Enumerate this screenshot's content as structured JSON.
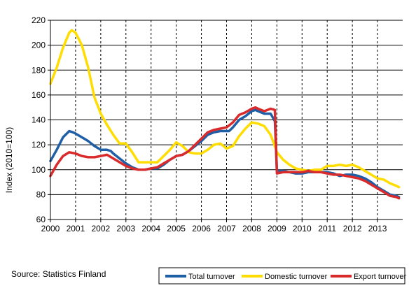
{
  "chart_data": {
    "type": "line",
    "ylabel": "Index (2010=100)",
    "source": "Source: Statistics Finland",
    "xlim": [
      2000,
      2014
    ],
    "ylim": [
      60,
      220
    ],
    "x_ticks": [
      2000,
      2001,
      2002,
      2003,
      2004,
      2005,
      2006,
      2007,
      2008,
      2009,
      2010,
      2011,
      2012,
      2013
    ],
    "y_ticks": [
      60,
      80,
      100,
      120,
      140,
      160,
      180,
      200,
      220
    ],
    "grid": "vertical dashed at years, horizontal solid at y ticks",
    "legend_placement": "bottom-right",
    "series": [
      {
        "name": "Total turnover",
        "color": "#1f5fa6",
        "points": [
          [
            2000.0,
            107
          ],
          [
            2000.25,
            116
          ],
          [
            2000.5,
            126
          ],
          [
            2000.75,
            131
          ],
          [
            2000.9,
            130
          ],
          [
            2001.0,
            129
          ],
          [
            2001.25,
            126
          ],
          [
            2001.5,
            123
          ],
          [
            2001.75,
            119
          ],
          [
            2002.0,
            116
          ],
          [
            2002.25,
            116
          ],
          [
            2002.4,
            115
          ],
          [
            2002.5,
            113
          ],
          [
            2002.75,
            109
          ],
          [
            2003.0,
            105
          ],
          [
            2003.25,
            102
          ],
          [
            2003.5,
            100
          ],
          [
            2003.75,
            100
          ],
          [
            2004.0,
            101
          ],
          [
            2004.25,
            101
          ],
          [
            2004.5,
            104
          ],
          [
            2004.75,
            108
          ],
          [
            2005.0,
            111
          ],
          [
            2005.25,
            112
          ],
          [
            2005.5,
            115
          ],
          [
            2005.75,
            119
          ],
          [
            2006.0,
            123
          ],
          [
            2006.25,
            128
          ],
          [
            2006.5,
            130
          ],
          [
            2006.75,
            131
          ],
          [
            2007.0,
            131
          ],
          [
            2007.1,
            131
          ],
          [
            2007.25,
            134
          ],
          [
            2007.5,
            140
          ],
          [
            2007.75,
            143
          ],
          [
            2008.0,
            147
          ],
          [
            2008.15,
            148
          ],
          [
            2008.25,
            147
          ],
          [
            2008.5,
            145
          ],
          [
            2008.75,
            145
          ],
          [
            2008.92,
            139
          ],
          [
            2009.0,
            99
          ],
          [
            2009.25,
            99
          ],
          [
            2009.5,
            98
          ],
          [
            2009.75,
            97
          ],
          [
            2010.0,
            97
          ],
          [
            2010.25,
            98
          ],
          [
            2010.5,
            98
          ],
          [
            2010.75,
            98
          ],
          [
            2011.0,
            98
          ],
          [
            2011.25,
            97
          ],
          [
            2011.5,
            95
          ],
          [
            2011.75,
            96
          ],
          [
            2012.0,
            96
          ],
          [
            2012.25,
            95
          ],
          [
            2012.5,
            93
          ],
          [
            2012.75,
            90
          ],
          [
            2013.0,
            86
          ],
          [
            2013.25,
            83
          ],
          [
            2013.5,
            80
          ],
          [
            2013.75,
            79
          ],
          [
            2013.85,
            78
          ]
        ]
      },
      {
        "name": "Domestic turnover",
        "color": "#ffdd00",
        "points": [
          [
            2000.0,
            169
          ],
          [
            2000.25,
            182
          ],
          [
            2000.5,
            198
          ],
          [
            2000.75,
            210
          ],
          [
            2000.85,
            212
          ],
          [
            2001.0,
            210
          ],
          [
            2001.25,
            200
          ],
          [
            2001.5,
            182
          ],
          [
            2001.75,
            158
          ],
          [
            2002.0,
            145
          ],
          [
            2002.25,
            136
          ],
          [
            2002.5,
            128
          ],
          [
            2002.75,
            121
          ],
          [
            2003.0,
            121
          ],
          [
            2003.25,
            114
          ],
          [
            2003.5,
            106
          ],
          [
            2003.75,
            106
          ],
          [
            2004.0,
            106
          ],
          [
            2004.25,
            106
          ],
          [
            2004.5,
            111
          ],
          [
            2004.75,
            116
          ],
          [
            2005.0,
            122
          ],
          [
            2005.25,
            119
          ],
          [
            2005.5,
            114
          ],
          [
            2005.75,
            113
          ],
          [
            2006.0,
            113
          ],
          [
            2006.25,
            116
          ],
          [
            2006.5,
            120
          ],
          [
            2006.75,
            121
          ],
          [
            2007.0,
            117
          ],
          [
            2007.25,
            119
          ],
          [
            2007.5,
            127
          ],
          [
            2007.75,
            133
          ],
          [
            2008.0,
            138
          ],
          [
            2008.25,
            137
          ],
          [
            2008.5,
            135
          ],
          [
            2008.75,
            128
          ],
          [
            2008.9,
            120
          ],
          [
            2009.0,
            114
          ],
          [
            2009.25,
            108
          ],
          [
            2009.5,
            104
          ],
          [
            2009.75,
            101
          ],
          [
            2010.0,
            100
          ],
          [
            2010.25,
            99
          ],
          [
            2010.5,
            100
          ],
          [
            2010.75,
            100
          ],
          [
            2011.0,
            103
          ],
          [
            2011.25,
            103
          ],
          [
            2011.5,
            104
          ],
          [
            2011.75,
            103
          ],
          [
            2012.0,
            104
          ],
          [
            2012.25,
            102
          ],
          [
            2012.5,
            99
          ],
          [
            2012.75,
            96
          ],
          [
            2013.0,
            93
          ],
          [
            2013.25,
            92
          ],
          [
            2013.5,
            89
          ],
          [
            2013.75,
            87
          ],
          [
            2013.85,
            86
          ]
        ]
      },
      {
        "name": "Export turnover",
        "color": "#d92b2b",
        "points": [
          [
            2000.0,
            95
          ],
          [
            2000.25,
            104
          ],
          [
            2000.5,
            111
          ],
          [
            2000.75,
            114
          ],
          [
            2001.0,
            113
          ],
          [
            2001.25,
            111
          ],
          [
            2001.5,
            110
          ],
          [
            2001.75,
            110
          ],
          [
            2002.0,
            111
          ],
          [
            2002.25,
            112
          ],
          [
            2002.5,
            109
          ],
          [
            2002.75,
            106
          ],
          [
            2003.0,
            103
          ],
          [
            2003.25,
            101
          ],
          [
            2003.5,
            100
          ],
          [
            2003.75,
            100
          ],
          [
            2004.0,
            101
          ],
          [
            2004.25,
            102
          ],
          [
            2004.5,
            105
          ],
          [
            2004.75,
            108
          ],
          [
            2005.0,
            111
          ],
          [
            2005.25,
            112
          ],
          [
            2005.5,
            115
          ],
          [
            2005.75,
            120
          ],
          [
            2006.0,
            125
          ],
          [
            2006.25,
            130
          ],
          [
            2006.5,
            132
          ],
          [
            2006.75,
            133
          ],
          [
            2007.0,
            134
          ],
          [
            2007.25,
            138
          ],
          [
            2007.5,
            144
          ],
          [
            2007.75,
            146
          ],
          [
            2008.0,
            149
          ],
          [
            2008.15,
            150
          ],
          [
            2008.25,
            149
          ],
          [
            2008.5,
            147
          ],
          [
            2008.75,
            149
          ],
          [
            2008.92,
            148
          ],
          [
            2009.0,
            97
          ],
          [
            2009.25,
            98
          ],
          [
            2009.5,
            98
          ],
          [
            2009.75,
            98
          ],
          [
            2010.0,
            98
          ],
          [
            2010.25,
            99
          ],
          [
            2010.5,
            98
          ],
          [
            2010.75,
            98
          ],
          [
            2011.0,
            97
          ],
          [
            2011.25,
            96
          ],
          [
            2011.5,
            96
          ],
          [
            2011.75,
            95
          ],
          [
            2012.0,
            94
          ],
          [
            2012.25,
            93
          ],
          [
            2012.5,
            91
          ],
          [
            2012.75,
            88
          ],
          [
            2013.0,
            85
          ],
          [
            2013.25,
            82
          ],
          [
            2013.5,
            79
          ],
          [
            2013.75,
            78
          ],
          [
            2013.85,
            77
          ]
        ]
      }
    ]
  }
}
